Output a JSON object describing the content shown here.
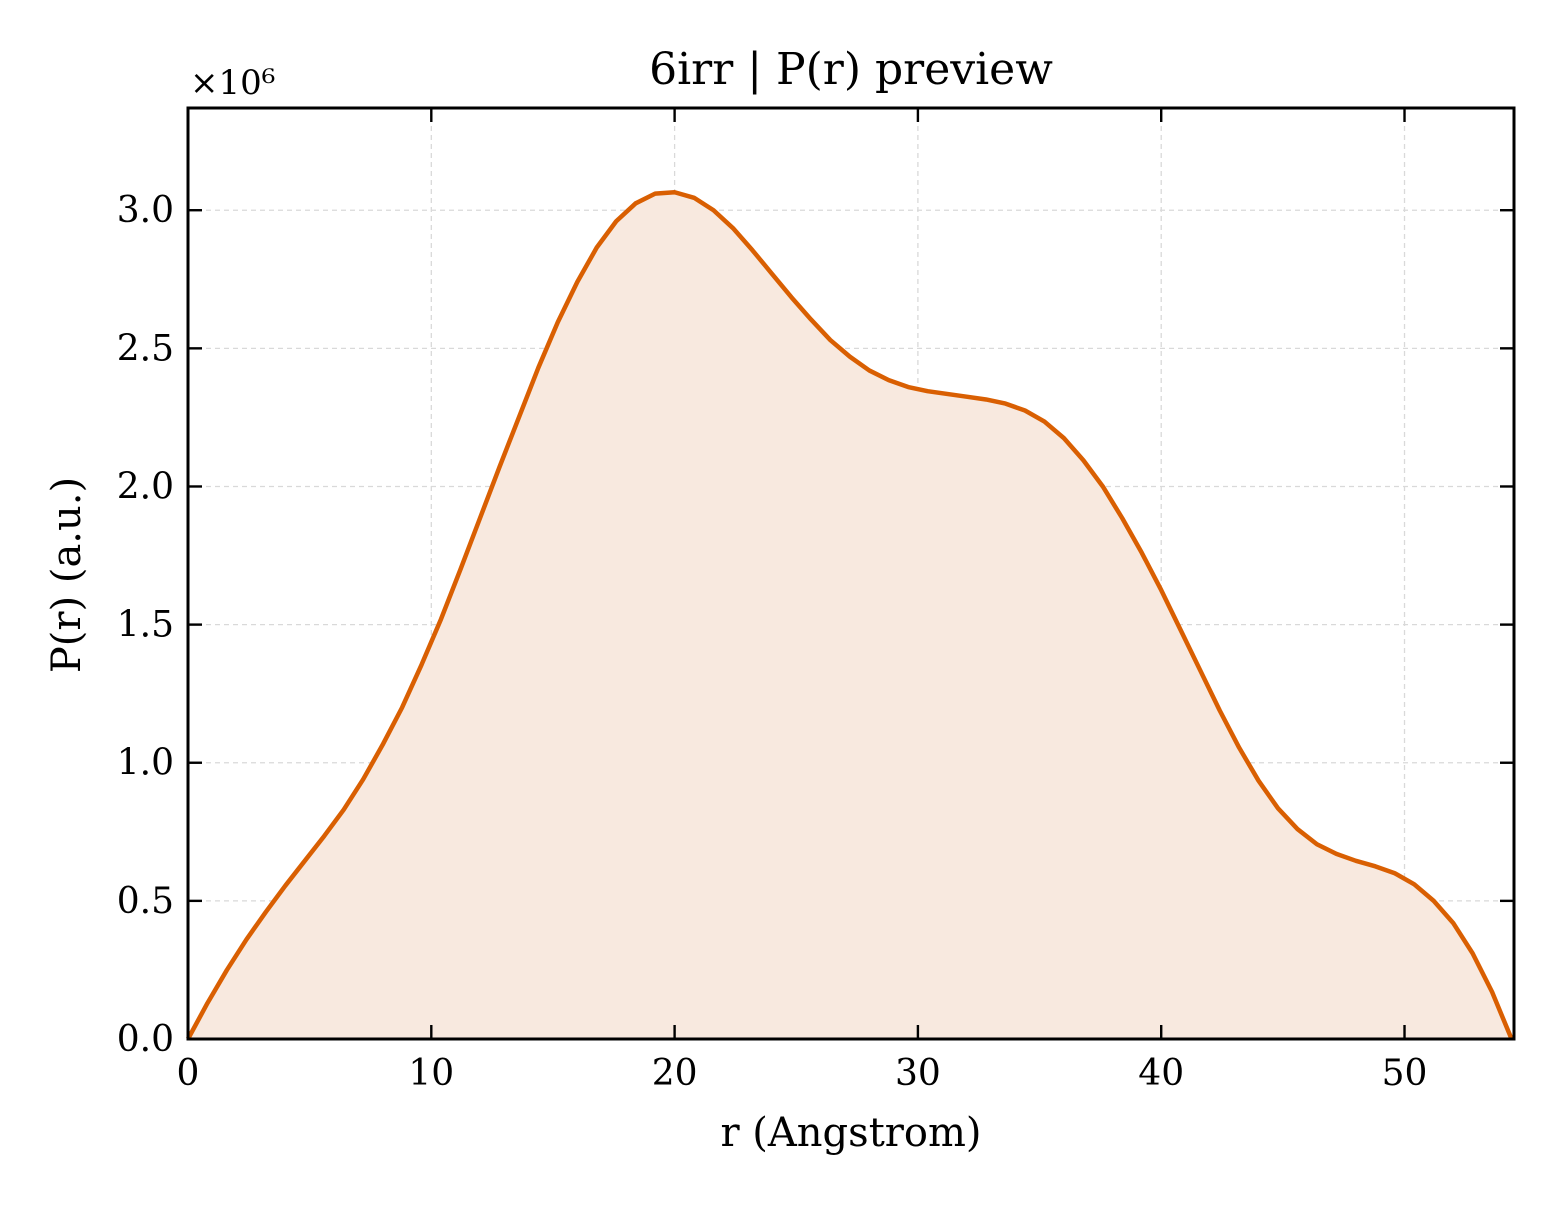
{
  "chart_data": {
    "type": "area",
    "title": "6irr | P(r) preview",
    "xlabel": "r (Angstrom)",
    "ylabel": "P(r) (a.u.)",
    "y_multiplier_label": "×10⁶",
    "y_scale": 1000000,
    "xlim": [
      0,
      54.5
    ],
    "ylim": [
      0,
      3.37
    ],
    "xticks": [
      0,
      10,
      20,
      30,
      40,
      50
    ],
    "xtick_labels": [
      "0",
      "10",
      "20",
      "30",
      "40",
      "50"
    ],
    "yticks": [
      0.0,
      0.5,
      1.0,
      1.5,
      2.0,
      2.5,
      3.0
    ],
    "ytick_labels": [
      "0.0",
      "0.5",
      "1.0",
      "1.5",
      "2.0",
      "2.5",
      "3.0"
    ],
    "grid": true,
    "legend": "none",
    "line_color": "#d95f02",
    "fill_color": "#f8e9df",
    "grid_color": "#d9d9d9",
    "series": [
      {
        "x": [
          0,
          0.8,
          1.6,
          2.4,
          3.2,
          4.0,
          4.8,
          5.6,
          6.4,
          7.2,
          8.0,
          8.8,
          9.6,
          10.4,
          11.2,
          12.0,
          12.8,
          13.6,
          14.4,
          15.2,
          16.0,
          16.8,
          17.6,
          18.4,
          19.2,
          20.0,
          20.8,
          21.6,
          22.4,
          23.2,
          24.0,
          24.8,
          25.6,
          26.4,
          27.2,
          28.0,
          28.8,
          29.6,
          30.4,
          31.2,
          32.0,
          32.8,
          33.6,
          34.4,
          35.2,
          36.0,
          36.8,
          37.6,
          38.4,
          39.2,
          40.0,
          40.8,
          41.6,
          42.4,
          43.2,
          44.0,
          44.8,
          45.6,
          46.4,
          47.2,
          48.0,
          48.8,
          49.6,
          50.4,
          51.2,
          52.0,
          52.8,
          53.6,
          54.4
        ],
        "y": [
          0.0,
          0.13,
          0.25,
          0.36,
          0.46,
          0.555,
          0.645,
          0.735,
          0.83,
          0.94,
          1.065,
          1.2,
          1.355,
          1.52,
          1.7,
          1.885,
          2.07,
          2.25,
          2.43,
          2.595,
          2.74,
          2.865,
          2.96,
          3.025,
          3.06,
          3.065,
          3.045,
          3.0,
          2.935,
          2.855,
          2.77,
          2.685,
          2.605,
          2.53,
          2.47,
          2.42,
          2.385,
          2.36,
          2.345,
          2.335,
          2.325,
          2.315,
          2.3,
          2.275,
          2.235,
          2.175,
          2.095,
          2.0,
          1.885,
          1.76,
          1.625,
          1.48,
          1.335,
          1.19,
          1.055,
          0.935,
          0.835,
          0.76,
          0.705,
          0.67,
          0.645,
          0.625,
          0.6,
          0.56,
          0.5,
          0.42,
          0.31,
          0.17,
          0.0
        ]
      }
    ]
  }
}
